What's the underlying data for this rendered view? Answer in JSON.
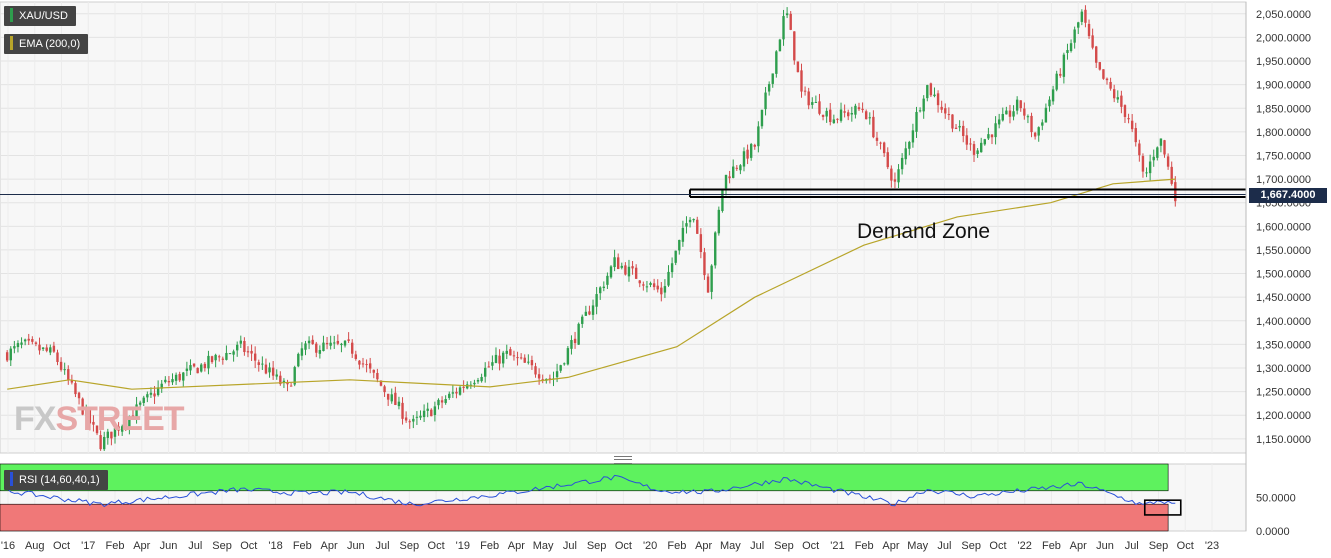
{
  "symbol_label": "XAU/USD",
  "ema_label": "EMA (200,0)",
  "rsi_label": "RSI (14,60,40,1)",
  "annotation": "Demand Zone",
  "last_price_tag": "1,667.4000",
  "watermark": {
    "part1": "FX",
    "part2": "STREET"
  },
  "colors": {
    "up": "#2e9e4d",
    "down": "#d44a4a",
    "ema": "#b8a52a",
    "rsi_line": "#2950d8",
    "rsi_upper_zone": "#5ef25e",
    "rsi_lower_zone": "#f07878",
    "price_line": "#1c2c4a"
  },
  "chart_data": [
    {
      "type": "candlestick",
      "title": "XAU/USD",
      "ylim": [
        1120,
        2075
      ],
      "yticks": [
        {
          "value": 1150,
          "label": "1,150.0000"
        },
        {
          "value": 1200,
          "label": "1,200.0000"
        },
        {
          "value": 1250,
          "label": "1,250.0000"
        },
        {
          "value": 1300,
          "label": "1,300.0000"
        },
        {
          "value": 1350,
          "label": "1,350.0000"
        },
        {
          "value": 1400,
          "label": "1,400.0000"
        },
        {
          "value": 1450,
          "label": "1,450.0000"
        },
        {
          "value": 1500,
          "label": "1,500.0000"
        },
        {
          "value": 1550,
          "label": "1,550.0000"
        },
        {
          "value": 1600,
          "label": "1,600.0000"
        },
        {
          "value": 1650,
          "label": "1,650.0000"
        },
        {
          "value": 1700,
          "label": "1,700.0000"
        },
        {
          "value": 1750,
          "label": "1,750.0000"
        },
        {
          "value": 1800,
          "label": "1,800.0000"
        },
        {
          "value": 1850,
          "label": "1,850.0000"
        },
        {
          "value": 1900,
          "label": "1,900.0000"
        },
        {
          "value": 1950,
          "label": "1,950.0000"
        },
        {
          "value": 2000,
          "label": "2,000.0000"
        },
        {
          "value": 2050,
          "label": "2,050.0000"
        }
      ],
      "xticks": [
        "'16",
        "Aug",
        "Oct",
        "'17",
        "Feb",
        "Apr",
        "Jun",
        "Jul",
        "Sep",
        "Oct",
        "'18",
        "Feb",
        "Apr",
        "Jun",
        "Jul",
        "Sep",
        "Oct",
        "'19",
        "Feb",
        "Apr",
        "May",
        "Jul",
        "Sep",
        "Oct",
        "'20",
        "Feb",
        "Apr",
        "May",
        "Jul",
        "Sep",
        "Oct",
        "'21",
        "Feb",
        "Apr",
        "May",
        "Jul",
        "Sep",
        "Oct",
        "'22",
        "Feb",
        "Apr",
        "Jun",
        "Jul",
        "Sep",
        "Oct",
        "'23"
      ],
      "key_points": [
        {
          "date": "2016-06",
          "close": 1330
        },
        {
          "date": "2016-07",
          "close": 1350
        },
        {
          "date": "2016-09",
          "close": 1330
        },
        {
          "date": "2016-12",
          "close": 1140
        },
        {
          "date": "2017-04",
          "close": 1265
        },
        {
          "date": "2017-09",
          "close": 1345
        },
        {
          "date": "2017-12",
          "close": 1255
        },
        {
          "date": "2018-01",
          "close": 1345
        },
        {
          "date": "2018-04",
          "close": 1345
        },
        {
          "date": "2018-08",
          "close": 1180
        },
        {
          "date": "2018-12",
          "close": 1280
        },
        {
          "date": "2019-02",
          "close": 1330
        },
        {
          "date": "2019-05",
          "close": 1275
        },
        {
          "date": "2019-09",
          "close": 1525
        },
        {
          "date": "2019-12",
          "close": 1460
        },
        {
          "date": "2020-02",
          "close": 1640
        },
        {
          "date": "2020-03",
          "close": 1470
        },
        {
          "date": "2020-04",
          "close": 1700
        },
        {
          "date": "2020-06",
          "close": 1770
        },
        {
          "date": "2020-08",
          "close": 2060
        },
        {
          "date": "2020-09",
          "close": 1880
        },
        {
          "date": "2020-11",
          "close": 1830
        },
        {
          "date": "2021-01",
          "close": 1850
        },
        {
          "date": "2021-03",
          "close": 1690
        },
        {
          "date": "2021-05",
          "close": 1900
        },
        {
          "date": "2021-08",
          "close": 1760
        },
        {
          "date": "2021-11",
          "close": 1860
        },
        {
          "date": "2021-12",
          "close": 1790
        },
        {
          "date": "2022-03",
          "close": 2050
        },
        {
          "date": "2022-04",
          "close": 1930
        },
        {
          "date": "2022-06",
          "close": 1830
        },
        {
          "date": "2022-07",
          "close": 1700
        },
        {
          "date": "2022-08",
          "close": 1790
        },
        {
          "date": "2022-09",
          "close": 1667
        }
      ],
      "ema_200_points": [
        {
          "date": "2016-06",
          "value": 1255
        },
        {
          "date": "2016-10",
          "value": 1275
        },
        {
          "date": "2017-02",
          "value": 1255
        },
        {
          "date": "2018-04",
          "value": 1275
        },
        {
          "date": "2019-01",
          "value": 1260
        },
        {
          "date": "2019-06",
          "value": 1280
        },
        {
          "date": "2020-01",
          "value": 1345
        },
        {
          "date": "2020-06",
          "value": 1450
        },
        {
          "date": "2021-01",
          "value": 1560
        },
        {
          "date": "2021-07",
          "value": 1620
        },
        {
          "date": "2022-01",
          "value": 1650
        },
        {
          "date": "2022-05",
          "value": 1690
        },
        {
          "date": "2022-09",
          "value": 1700
        }
      ],
      "demand_zone": [
        1662,
        1678
      ],
      "last_price": 1667.4
    },
    {
      "type": "line",
      "title": "RSI (14,60,40,1)",
      "ylim": [
        0,
        100
      ],
      "upper_level": 60,
      "lower_level": 40,
      "yticks": [
        {
          "value": 0,
          "label": "0.0000"
        },
        {
          "value": 50,
          "label": "50.0000"
        }
      ],
      "key_points": [
        {
          "date": "2016-06",
          "value": 60
        },
        {
          "date": "2016-12",
          "value": 40
        },
        {
          "date": "2017-09",
          "value": 62
        },
        {
          "date": "2018-01",
          "value": 56
        },
        {
          "date": "2018-04",
          "value": 58
        },
        {
          "date": "2018-08",
          "value": 40
        },
        {
          "date": "2019-02",
          "value": 56
        },
        {
          "date": "2019-09",
          "value": 80
        },
        {
          "date": "2019-12",
          "value": 60
        },
        {
          "date": "2020-03",
          "value": 58
        },
        {
          "date": "2020-08",
          "value": 78
        },
        {
          "date": "2021-03",
          "value": 40
        },
        {
          "date": "2021-05",
          "value": 62
        },
        {
          "date": "2021-08",
          "value": 52
        },
        {
          "date": "2022-03",
          "value": 70
        },
        {
          "date": "2022-07",
          "value": 38
        },
        {
          "date": "2022-08",
          "value": 46
        },
        {
          "date": "2022-09",
          "value": 38
        }
      ]
    }
  ]
}
